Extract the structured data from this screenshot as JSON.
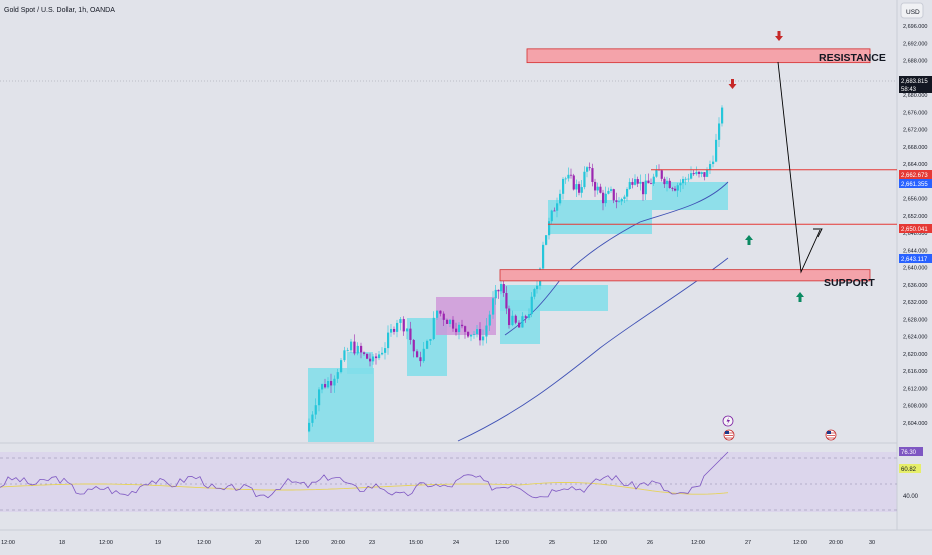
{
  "symbol_title": "Gold Spot / U.S. Dollar, 1h, OANDA",
  "currency_button": "USD",
  "price_axis": {
    "ticks": [
      "2,696.000",
      "2,692.000",
      "2,688.000",
      "2,684.000",
      "2,680.000",
      "2,676.000",
      "2,672.000",
      "2,668.000",
      "2,664.000",
      "2,660.000",
      "2,656.000",
      "2,652.000",
      "2,648.000",
      "2,644.000",
      "2,640.000",
      "2,636.000",
      "2,632.000",
      "2,628.000",
      "2,624.000",
      "2,620.000",
      "2,616.000",
      "2,612.000",
      "2,608.000",
      "2,604.000"
    ],
    "tick_values": [
      2696,
      2692,
      2688,
      2684,
      2680,
      2676,
      2672,
      2668,
      2664,
      2660,
      2656,
      2652,
      2648,
      2644,
      2640,
      2636,
      2632,
      2628,
      2624,
      2620,
      2616,
      2612,
      2608,
      2604
    ]
  },
  "price_labels": {
    "last_price": "2,683.815",
    "countdown": "58:43",
    "level_1": "2,662.673",
    "level_2": "2,661.355",
    "level_3": "2,650.041",
    "level_4": "2,643.117"
  },
  "annotations": {
    "resistance": "RESISTANCE",
    "support": "SUPPORT"
  },
  "rsi": {
    "value": "76.30",
    "ma_value": "60.82",
    "tick_40": "40.00"
  },
  "time_axis": [
    "12:00",
    "18",
    "12:00",
    "19",
    "12:00",
    "20",
    "12:00",
    "20:00",
    "23",
    "15:00",
    "24",
    "12:00",
    "25",
    "12:00",
    "26",
    "12:00",
    "27",
    "12:00",
    "20:00",
    "30"
  ],
  "colors": {
    "background": "#e1e3ea",
    "candle_teal": "#26c6da",
    "candle_purple": "#9c27b0",
    "teal_fill": "#80deea",
    "purple_fill": "#ce93d8",
    "zone_fill": "#f4a3aa",
    "zone_border": "#d32f2f",
    "level_red": "#e53935",
    "level_blue": "#2962ff",
    "ma_line": "#3f51b5",
    "arrow_red": "#c62828",
    "arrow_green": "#0b8a62",
    "rsi_line": "#7e57c2",
    "rsi_ma": "#e6d35a"
  },
  "chart_data": {
    "type": "candlestick",
    "y_range": [
      2602,
      2698
    ],
    "levels": [
      {
        "value": 2662.673,
        "color": "#e53935"
      },
      {
        "value": 2661.355,
        "color": "#2962ff"
      },
      {
        "value": 2650.041,
        "color": "#e53935"
      },
      {
        "value": 2643.117,
        "color": "#2962ff"
      }
    ],
    "resistance_zone": [
      2687.5,
      2690.7
    ],
    "support_zone": [
      2636.9,
      2639.5
    ],
    "last_price": 2683.815
  }
}
